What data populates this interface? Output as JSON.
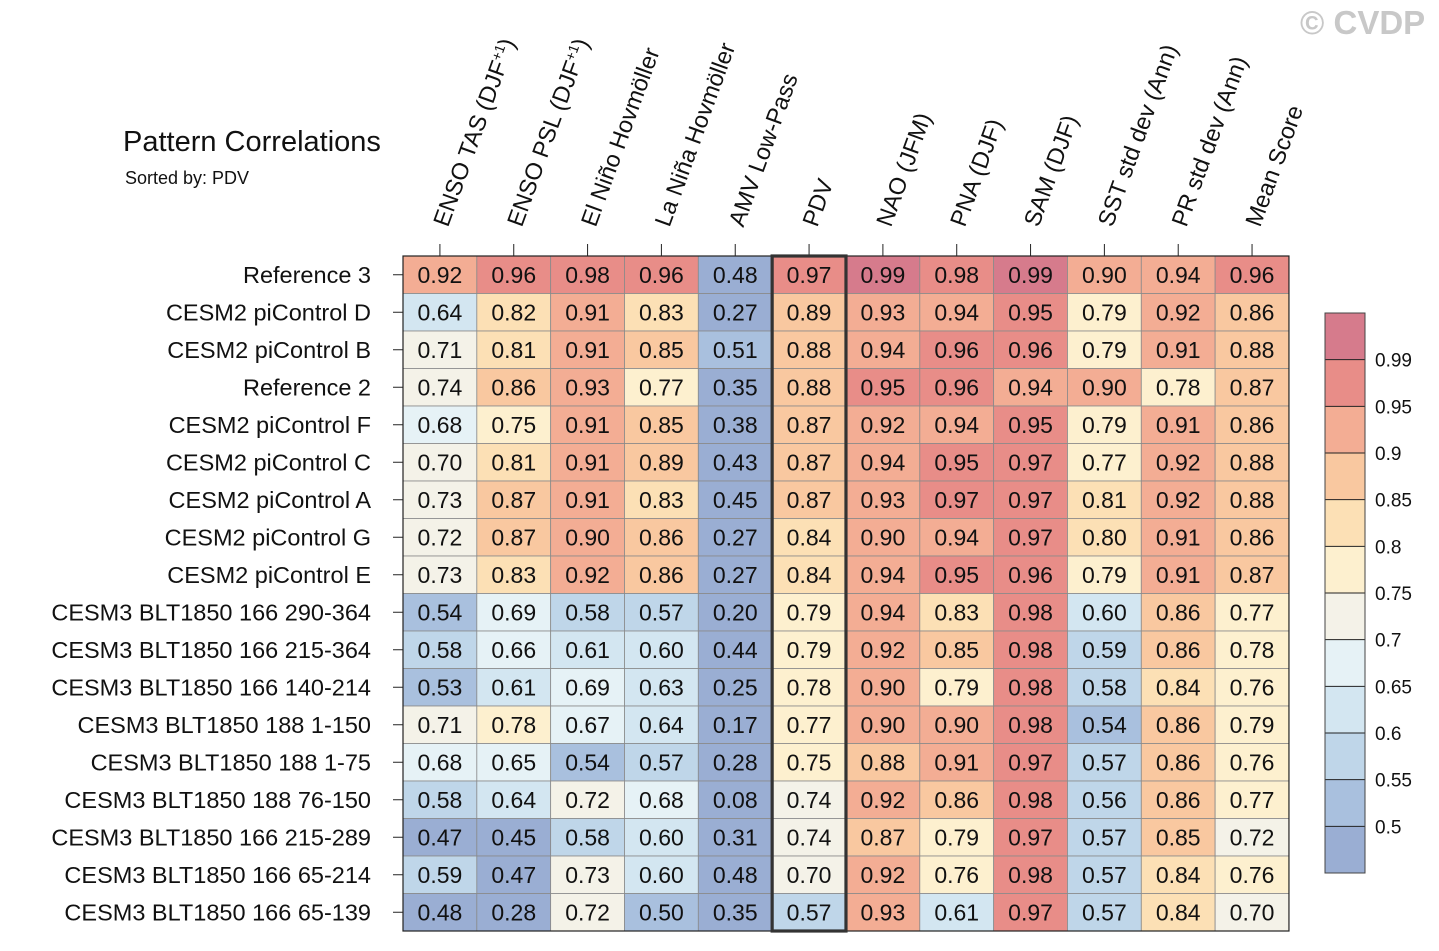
{
  "watermark": "© CVDP",
  "chart_data": {
    "type": "heatmap",
    "title": "Pattern Correlations",
    "subtitle": "Sorted by: PDV",
    "highlighted_column": "PDV",
    "columns": [
      "ENSO TAS (DJF+1)",
      "ENSO PSL (DJF+1)",
      "El Niño Hovmöller",
      "La Niña Hovmöller",
      "AMV Low-Pass",
      "PDV",
      "NAO (JFM)",
      "PNA (DJF)",
      "SAM (DJF)",
      "SST std dev (Ann)",
      "PR std dev (Ann)",
      "Mean Score"
    ],
    "rows": [
      {
        "label": "Reference 3",
        "values": [
          0.92,
          0.96,
          0.98,
          0.96,
          0.48,
          0.97,
          0.99,
          0.98,
          0.99,
          0.9,
          0.94,
          0.96
        ]
      },
      {
        "label": "CESM2 piControl D",
        "values": [
          0.64,
          0.82,
          0.91,
          0.83,
          0.27,
          0.89,
          0.93,
          0.94,
          0.95,
          0.79,
          0.92,
          0.86
        ]
      },
      {
        "label": "CESM2 piControl B",
        "values": [
          0.71,
          0.81,
          0.91,
          0.85,
          0.51,
          0.88,
          0.94,
          0.96,
          0.96,
          0.79,
          0.91,
          0.88
        ]
      },
      {
        "label": "Reference 2",
        "values": [
          0.74,
          0.86,
          0.93,
          0.77,
          0.35,
          0.88,
          0.95,
          0.96,
          0.94,
          0.9,
          0.78,
          0.87
        ]
      },
      {
        "label": "CESM2 piControl F",
        "values": [
          0.68,
          0.75,
          0.91,
          0.85,
          0.38,
          0.87,
          0.92,
          0.94,
          0.95,
          0.79,
          0.91,
          0.86
        ]
      },
      {
        "label": "CESM2 piControl C",
        "values": [
          0.7,
          0.81,
          0.91,
          0.89,
          0.43,
          0.87,
          0.94,
          0.95,
          0.97,
          0.77,
          0.92,
          0.88
        ]
      },
      {
        "label": "CESM2 piControl A",
        "values": [
          0.73,
          0.87,
          0.91,
          0.83,
          0.45,
          0.87,
          0.93,
          0.97,
          0.97,
          0.81,
          0.92,
          0.88
        ]
      },
      {
        "label": "CESM2 piControl G",
        "values": [
          0.72,
          0.87,
          0.9,
          0.86,
          0.27,
          0.84,
          0.9,
          0.94,
          0.97,
          0.8,
          0.91,
          0.86
        ]
      },
      {
        "label": "CESM2 piControl E",
        "values": [
          0.73,
          0.83,
          0.92,
          0.86,
          0.27,
          0.84,
          0.94,
          0.95,
          0.96,
          0.79,
          0.91,
          0.87
        ]
      },
      {
        "label": "CESM3 BLT1850 166 290-364",
        "values": [
          0.54,
          0.69,
          0.58,
          0.57,
          0.2,
          0.79,
          0.94,
          0.83,
          0.98,
          0.6,
          0.86,
          0.77
        ]
      },
      {
        "label": "CESM3 BLT1850 166 215-364",
        "values": [
          0.58,
          0.66,
          0.61,
          0.6,
          0.44,
          0.79,
          0.92,
          0.85,
          0.98,
          0.59,
          0.86,
          0.78
        ]
      },
      {
        "label": "CESM3 BLT1850 166 140-214",
        "values": [
          0.53,
          0.61,
          0.69,
          0.63,
          0.25,
          0.78,
          0.9,
          0.79,
          0.98,
          0.58,
          0.84,
          0.76
        ]
      },
      {
        "label": "CESM3 BLT1850 188 1-150",
        "values": [
          0.71,
          0.78,
          0.67,
          0.64,
          0.17,
          0.77,
          0.9,
          0.9,
          0.98,
          0.54,
          0.86,
          0.79
        ]
      },
      {
        "label": "CESM3 BLT1850 188 1-75",
        "values": [
          0.68,
          0.65,
          0.54,
          0.57,
          0.28,
          0.75,
          0.88,
          0.91,
          0.97,
          0.57,
          0.86,
          0.76
        ]
      },
      {
        "label": "CESM3 BLT1850 188 76-150",
        "values": [
          0.58,
          0.64,
          0.72,
          0.68,
          0.08,
          0.74,
          0.92,
          0.86,
          0.98,
          0.56,
          0.86,
          0.77
        ]
      },
      {
        "label": "CESM3 BLT1850 166 215-289",
        "values": [
          0.47,
          0.45,
          0.58,
          0.6,
          0.31,
          0.74,
          0.87,
          0.79,
          0.97,
          0.57,
          0.85,
          0.72
        ]
      },
      {
        "label": "CESM3 BLT1850 166 65-214",
        "values": [
          0.59,
          0.47,
          0.73,
          0.6,
          0.48,
          0.7,
          0.92,
          0.76,
          0.98,
          0.57,
          0.84,
          0.76
        ]
      },
      {
        "label": "CESM3 BLT1850 166 65-139",
        "values": [
          0.48,
          0.28,
          0.72,
          0.5,
          0.35,
          0.57,
          0.93,
          0.61,
          0.97,
          0.57,
          0.84,
          0.7
        ]
      }
    ],
    "colorbar": {
      "levels": [
        0.5,
        0.55,
        0.6,
        0.65,
        0.7,
        0.75,
        0.8,
        0.85,
        0.9,
        0.95,
        0.99
      ],
      "tick_labels": [
        "0.99",
        "0.95",
        "0.9",
        "0.85",
        "0.8",
        "0.75",
        "0.7",
        "0.65",
        "0.6",
        "0.55",
        "0.5"
      ],
      "colors": [
        "#9aaed3",
        "#a9c0de",
        "#bfd6e9",
        "#d3e6f1",
        "#e6f2f6",
        "#f4f2e8",
        "#fdf0cf",
        "#fce0b5",
        "#f9c8a0",
        "#f3ad94",
        "#e88d88",
        "#d67b8c"
      ]
    }
  }
}
